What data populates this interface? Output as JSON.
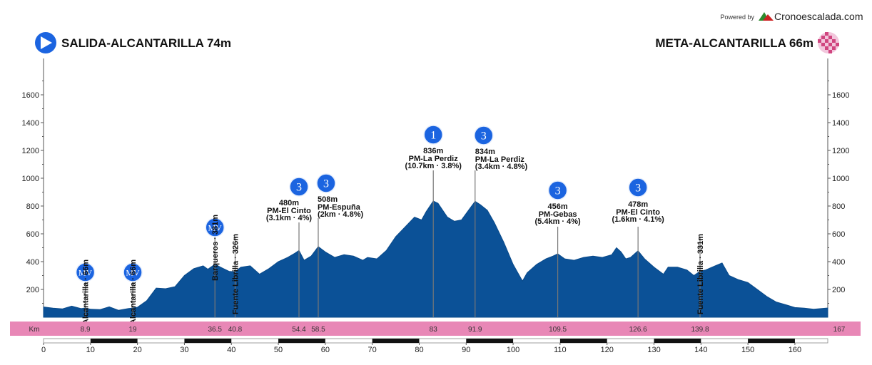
{
  "chart_data": {
    "type": "area",
    "title": "",
    "start_label": "SALIDA-ALCANTARILLA 74m",
    "finish_label": "META-ALCANTARILLA 66m",
    "powered_by": "Powered by",
    "brand": "Cronoescalada.com",
    "xlabel": "Km",
    "ylabel": "",
    "xlim": [
      0,
      167
    ],
    "ylim": [
      0,
      1800
    ],
    "y_ticks": [
      200,
      400,
      600,
      800,
      1000,
      1200,
      1400,
      1600
    ],
    "x_ticks": [
      0,
      10,
      20,
      30,
      40,
      50,
      60,
      70,
      80,
      90,
      100,
      110,
      120,
      130,
      140,
      150,
      160
    ],
    "series": [
      {
        "name": "altitude",
        "x": [
          0,
          2,
          4,
          6,
          8,
          8.9,
          10,
          12,
          14,
          16,
          18,
          19,
          20,
          22,
          24,
          26,
          28,
          30,
          32,
          34,
          35,
          36.5,
          38,
          39.5,
          40.8,
          42,
          44,
          46,
          48,
          50,
          52,
          53.5,
          54.4,
          55.5,
          57,
          58.5,
          60,
          62,
          64,
          66,
          68,
          69,
          71,
          73,
          75,
          77,
          79,
          80.5,
          81.5,
          83,
          84,
          86,
          87.5,
          89,
          90.5,
          91.9,
          93,
          94.5,
          96,
          98,
          100,
          102,
          103,
          105,
          107,
          108.5,
          109.5,
          111,
          113,
          115,
          117,
          119,
          121,
          122,
          123,
          124,
          125,
          126.6,
          128,
          130,
          132,
          133,
          135,
          137,
          138.5,
          139.8,
          141,
          143,
          144.5,
          146,
          148,
          150,
          152,
          154,
          156,
          158,
          160,
          162,
          164,
          167
        ],
        "values": [
          74,
          65,
          60,
          80,
          62,
          66,
          58,
          55,
          75,
          50,
          62,
          66,
          72,
          120,
          210,
          205,
          220,
          300,
          350,
          370,
          345,
          381,
          355,
          330,
          326,
          360,
          370,
          310,
          350,
          400,
          430,
          460,
          480,
          410,
          440,
          508,
          470,
          430,
          450,
          440,
          410,
          430,
          420,
          480,
          580,
          650,
          720,
          700,
          760,
          836,
          820,
          720,
          690,
          700,
          770,
          834,
          810,
          770,
          680,
          540,
          380,
          260,
          320,
          380,
          420,
          440,
          456,
          420,
          410,
          430,
          440,
          430,
          450,
          500,
          470,
          420,
          430,
          478,
          420,
          360,
          310,
          360,
          360,
          340,
          300,
          331,
          340,
          370,
          390,
          300,
          270,
          250,
          200,
          150,
          110,
          90,
          70,
          65,
          58,
          66
        ]
      }
    ],
    "waypoints": [
      {
        "km": 8.9,
        "km_label": "8.9",
        "name": "Alcantarilla · 66m",
        "badge": "MV"
      },
      {
        "km": 19,
        "km_label": "19",
        "name": "Alcantarilla · 66m",
        "badge": "MV"
      },
      {
        "km": 36.5,
        "km_label": "36.5",
        "name": "Barqueros · 381m",
        "badge": "MV"
      },
      {
        "km": 40.8,
        "km_label": "40.8",
        "name": "Fuente Librilla · 326m",
        "badge": ""
      },
      {
        "km": 54.4,
        "km_label": "54.4",
        "badge": "3",
        "alt": "480m",
        "name": "PM-El Cinto",
        "detail": "(3.1km · 4%)"
      },
      {
        "km": 58.5,
        "km_label": "58.5",
        "badge": "3",
        "alt": "508m",
        "name": "PM-Espuña",
        "detail": "(2km · 4.8%)"
      },
      {
        "km": 83,
        "km_label": "83",
        "badge": "1",
        "alt": "836m",
        "name": "PM-La Perdiz",
        "detail": "(10.7km · 3.8%)"
      },
      {
        "km": 91.9,
        "km_label": "91.9",
        "badge": "3",
        "alt": "834m",
        "name": "PM-La Perdiz",
        "detail": "(3.4km · 4.8%)"
      },
      {
        "km": 109.5,
        "km_label": "109.5",
        "badge": "3",
        "alt": "456m",
        "name": "PM-Gebas",
        "detail": "(5.4km · 4%)"
      },
      {
        "km": 126.6,
        "km_label": "126.6",
        "badge": "3",
        "alt": "478m",
        "name": "PM-El Cinto",
        "detail": "(1.6km · 4.1%)"
      },
      {
        "km": 139.8,
        "km_label": "139.8",
        "name": "Fuente Librilla · 331m",
        "badge": ""
      }
    ],
    "finish_km_label": "167"
  },
  "colors": {
    "fill": "#0b5197",
    "band": "#e887b6",
    "badge": "#1b64e0",
    "axis": "#555555",
    "stem": "#777777"
  }
}
